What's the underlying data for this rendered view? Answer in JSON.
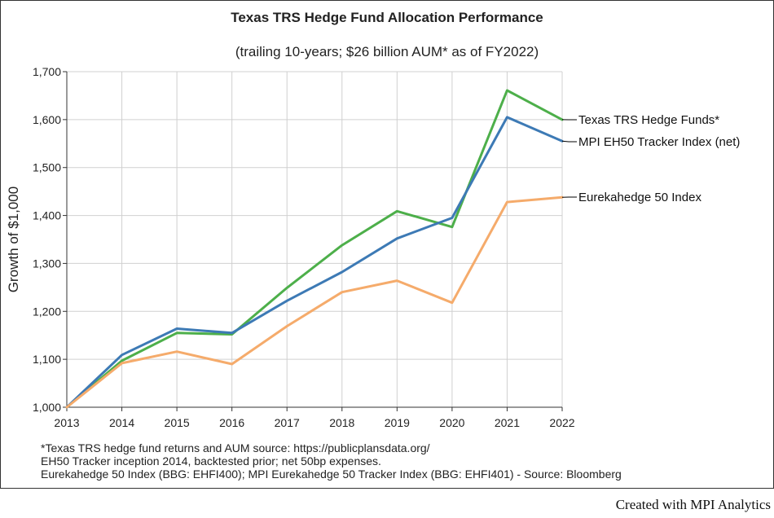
{
  "chart_data": {
    "type": "line",
    "title": "Texas TRS Hedge Fund Allocation Performance",
    "subtitle": "(trailing 10-years; $26 billion AUM* as of FY2022)",
    "xlabel": "",
    "ylabel": "Growth of $1,000",
    "x": [
      "2013",
      "2014",
      "2015",
      "2016",
      "2017",
      "2018",
      "2019",
      "2020",
      "2021",
      "2022"
    ],
    "ylim": [
      1000,
      1700
    ],
    "yticks": [
      1000,
      1100,
      1200,
      1300,
      1400,
      1500,
      1600,
      1700
    ],
    "ytick_labels": [
      "1,000",
      "1,100",
      "1,200",
      "1,300",
      "1,400",
      "1,500",
      "1,600",
      "1,700"
    ],
    "grid": true,
    "legend_placement": "right, end-of-line labels",
    "series": [
      {
        "name": "Texas TRS Hedge Funds*",
        "color": "#4daf4a",
        "values": [
          1000,
          1097,
          1155,
          1152,
          1249,
          1338,
          1409,
          1376,
          1661,
          1600
        ]
      },
      {
        "name": "MPI EH50 Tracker Index (net)",
        "color": "#3d7ab5",
        "values": [
          1000,
          1109,
          1164,
          1155,
          1222,
          1282,
          1352,
          1395,
          1605,
          1555
        ]
      },
      {
        "name": "Eurekahedge 50 Index",
        "color": "#f5ab6b",
        "values": [
          1000,
          1092,
          1116,
          1090,
          1169,
          1240,
          1264,
          1218,
          1428,
          1438
        ]
      }
    ]
  },
  "footnotes": [
    "*Texas TRS hedge fund returns and AUM source: https://publicplansdata.org/",
    "EH50 Tracker inception 2014, backtested prior; net 50bp expenses.",
    "Eurekahedge 50 Index (BBG: EHFI400); MPI Eurekahedge 50 Tracker Index (BBG: EHFI401) - Source: Bloomberg"
  ],
  "credit": "Created with MPI Analytics"
}
